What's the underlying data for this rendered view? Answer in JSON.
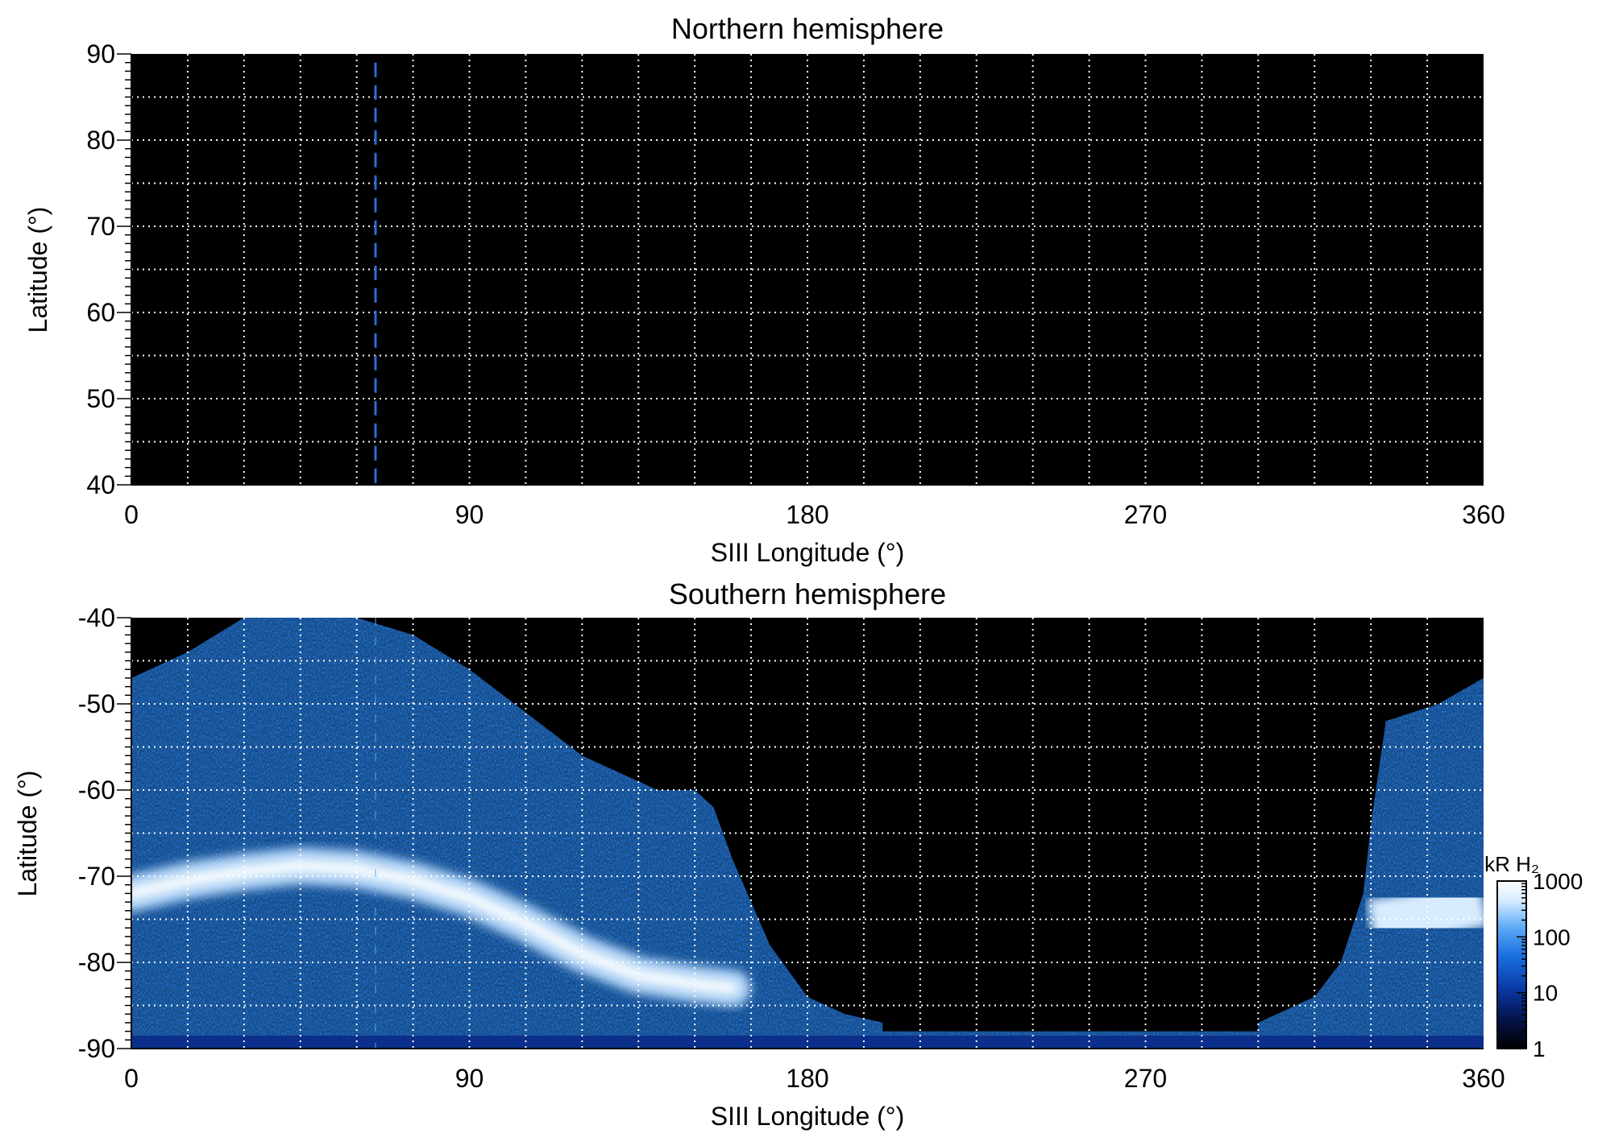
{
  "chart_data": [
    {
      "type": "heatmap",
      "title": "Northern hemisphere",
      "xlabel": "SIII Longitude (°)",
      "ylabel": "Latitude (°)",
      "xlim": [
        0,
        360
      ],
      "ylim": [
        40,
        90
      ],
      "x_ticks": [
        0,
        90,
        180,
        270,
        360
      ],
      "y_ticks": [
        40,
        50,
        60,
        70,
        80,
        90
      ],
      "grid": true,
      "grid_x_step": 15,
      "grid_y_step": 5,
      "background_color": "#000000",
      "marker_line": {
        "longitude": 65,
        "lat_range": [
          40,
          89
        ],
        "style": "dashed",
        "color": "#2a6fd6"
      },
      "emission": "none"
    },
    {
      "type": "heatmap",
      "title": "Southern hemisphere",
      "xlabel": "SIII Longitude (°)",
      "ylabel": "Latitude (°)",
      "xlim": [
        0,
        360
      ],
      "ylim": [
        -90,
        -40
      ],
      "x_ticks": [
        0,
        90,
        180,
        270,
        360
      ],
      "y_ticks": [
        -40,
        -50,
        -60,
        -70,
        -80,
        -90
      ],
      "grid": true,
      "grid_x_step": 15,
      "grid_y_step": 5,
      "background_color": "#000000",
      "colorbar": {
        "title": "kR H₂",
        "scale": "log",
        "range": [
          1,
          1000
        ],
        "ticks": [
          1,
          10,
          100,
          1000
        ],
        "colors": [
          "#000000",
          "#05144d",
          "#0a3aa8",
          "#1a6fe0",
          "#5aa8f5",
          "#d5ebff",
          "#ffffff"
        ]
      },
      "oval_center_latitude": [
        [
          0,
          -72
        ],
        [
          15,
          -70.5
        ],
        [
          30,
          -69.5
        ],
        [
          45,
          -68.8
        ],
        [
          60,
          -69.2
        ],
        [
          75,
          -70.5
        ],
        [
          90,
          -72.5
        ],
        [
          105,
          -75.5
        ],
        [
          120,
          -79
        ],
        [
          135,
          -81.5
        ],
        [
          150,
          -82.5
        ],
        [
          160,
          -83
        ],
        [
          330,
          -75.5
        ],
        [
          345,
          -74.5
        ],
        [
          360,
          -73
        ]
      ],
      "emission_equatorward_boundary": [
        [
          0,
          -47
        ],
        [
          15,
          -44
        ],
        [
          30,
          -40
        ],
        [
          60,
          -40
        ],
        [
          75,
          -42
        ],
        [
          90,
          -46
        ],
        [
          105,
          -51
        ],
        [
          120,
          -56
        ],
        [
          140,
          -60
        ],
        [
          150,
          -60
        ],
        [
          155,
          -62
        ],
        [
          160,
          -68
        ],
        [
          170,
          -78
        ],
        [
          180,
          -84
        ],
        [
          190,
          -86
        ],
        [
          200,
          -87
        ],
        [
          300,
          -87
        ],
        [
          315,
          -84
        ],
        [
          322,
          -80
        ],
        [
          328,
          -72
        ],
        [
          330,
          -64
        ],
        [
          334,
          -52
        ],
        [
          348,
          -50
        ],
        [
          360,
          -47
        ]
      ]
    }
  ]
}
